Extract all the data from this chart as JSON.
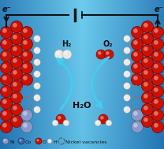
{
  "ni_color": "#8888bb",
  "co_color": "#4466aa",
  "o_color": "#cc1100",
  "h_color": "#e8e8e8",
  "h2_label": "H₂",
  "o2_label": "O₂",
  "h2o_label": "H₂O",
  "e_left_label": "e⁻",
  "e_right_label": "e⁻",
  "legend_ni": "Ni",
  "legend_co": "Co",
  "legend_o": "O",
  "legend_h": "H",
  "legend_vacancy": "Nickel vacancies",
  "arrow_color": "#44ccee",
  "wire_color": "#111111",
  "bg_colors": [
    "#0a5a99",
    "#2288cc",
    "#55aadd",
    "#2288cc",
    "#0a5a99"
  ]
}
